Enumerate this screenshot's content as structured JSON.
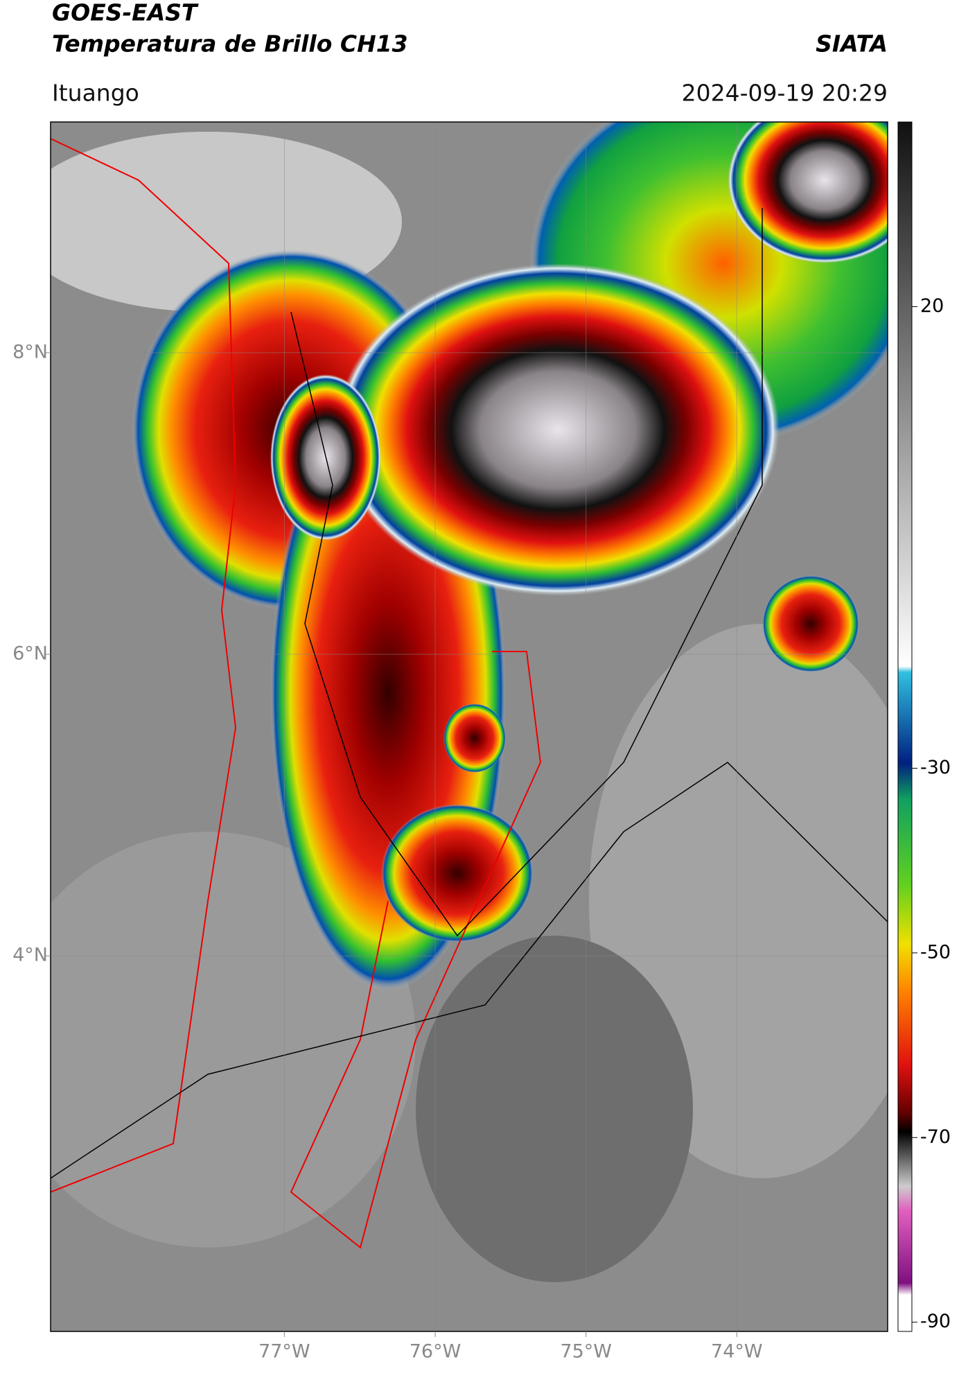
{
  "header": {
    "title": "GOES-EAST",
    "subtitle": "Temperatura de Brillo CH13",
    "source": "SIATA",
    "location": "Ituango",
    "datetime": "2024-09-19 20:29"
  },
  "map": {
    "xlim": [
      -78.55,
      -73.0
    ],
    "ylim": [
      1.51,
      9.53
    ],
    "xticks": [
      {
        "value": -77,
        "label": "77°W"
      },
      {
        "value": -76,
        "label": "76°W"
      },
      {
        "value": -75,
        "label": "75°W"
      },
      {
        "value": -74,
        "label": "74°W"
      }
    ],
    "yticks": [
      {
        "value": 8,
        "label": "8°N"
      },
      {
        "value": 6,
        "label": "6°N"
      },
      {
        "value": 4,
        "label": "4°N"
      }
    ],
    "grid": true
  },
  "colorbar": {
    "lim": [
      -91,
      40
    ],
    "ticks": [
      20,
      -30,
      -50,
      -70,
      -90
    ]
  }
}
